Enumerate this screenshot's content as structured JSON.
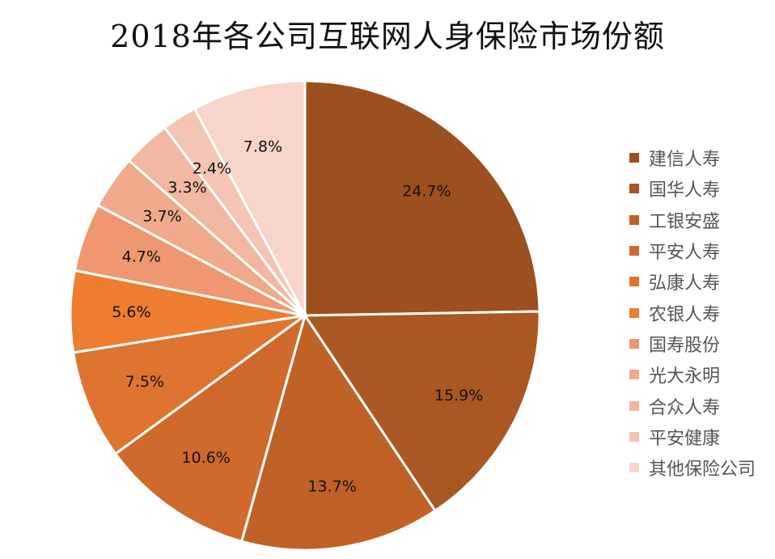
{
  "chart_data": {
    "type": "pie",
    "title": "2018年各公司互联网人身保险市场份额",
    "slices": [
      {
        "name": "建信人寿",
        "value": 24.7,
        "label": "24.7%",
        "color": "#9C4F1F"
      },
      {
        "name": "国华人寿",
        "value": 15.9,
        "label": "15.9%",
        "color": "#A95723"
      },
      {
        "name": "工银安盛",
        "value": 13.7,
        "label": "13.7%",
        "color": "#C06228"
      },
      {
        "name": "平安人寿",
        "value": 10.6,
        "label": "10.6%",
        "color": "#CF6A2C"
      },
      {
        "name": "弘康人寿",
        "value": 7.5,
        "label": "7.5%",
        "color": "#DF7430"
      },
      {
        "name": "农银人寿",
        "value": 5.6,
        "label": "5.6%",
        "color": "#ED7D31"
      },
      {
        "name": "国寿股份",
        "value": 4.7,
        "label": "4.7%",
        "color": "#EE9770"
      },
      {
        "name": "光大永明",
        "value": 3.7,
        "label": "3.7%",
        "color": "#F0A98A"
      },
      {
        "name": "合众人寿",
        "value": 3.3,
        "label": "3.3%",
        "color": "#F2B7A0"
      },
      {
        "name": "平安健康",
        "value": 2.4,
        "label": "2.4%",
        "color": "#F4C5B5"
      },
      {
        "name": "其他保险公司",
        "value": 7.8,
        "label": "7.8%",
        "color": "#F7D5CA"
      }
    ],
    "legend_position": "right"
  }
}
